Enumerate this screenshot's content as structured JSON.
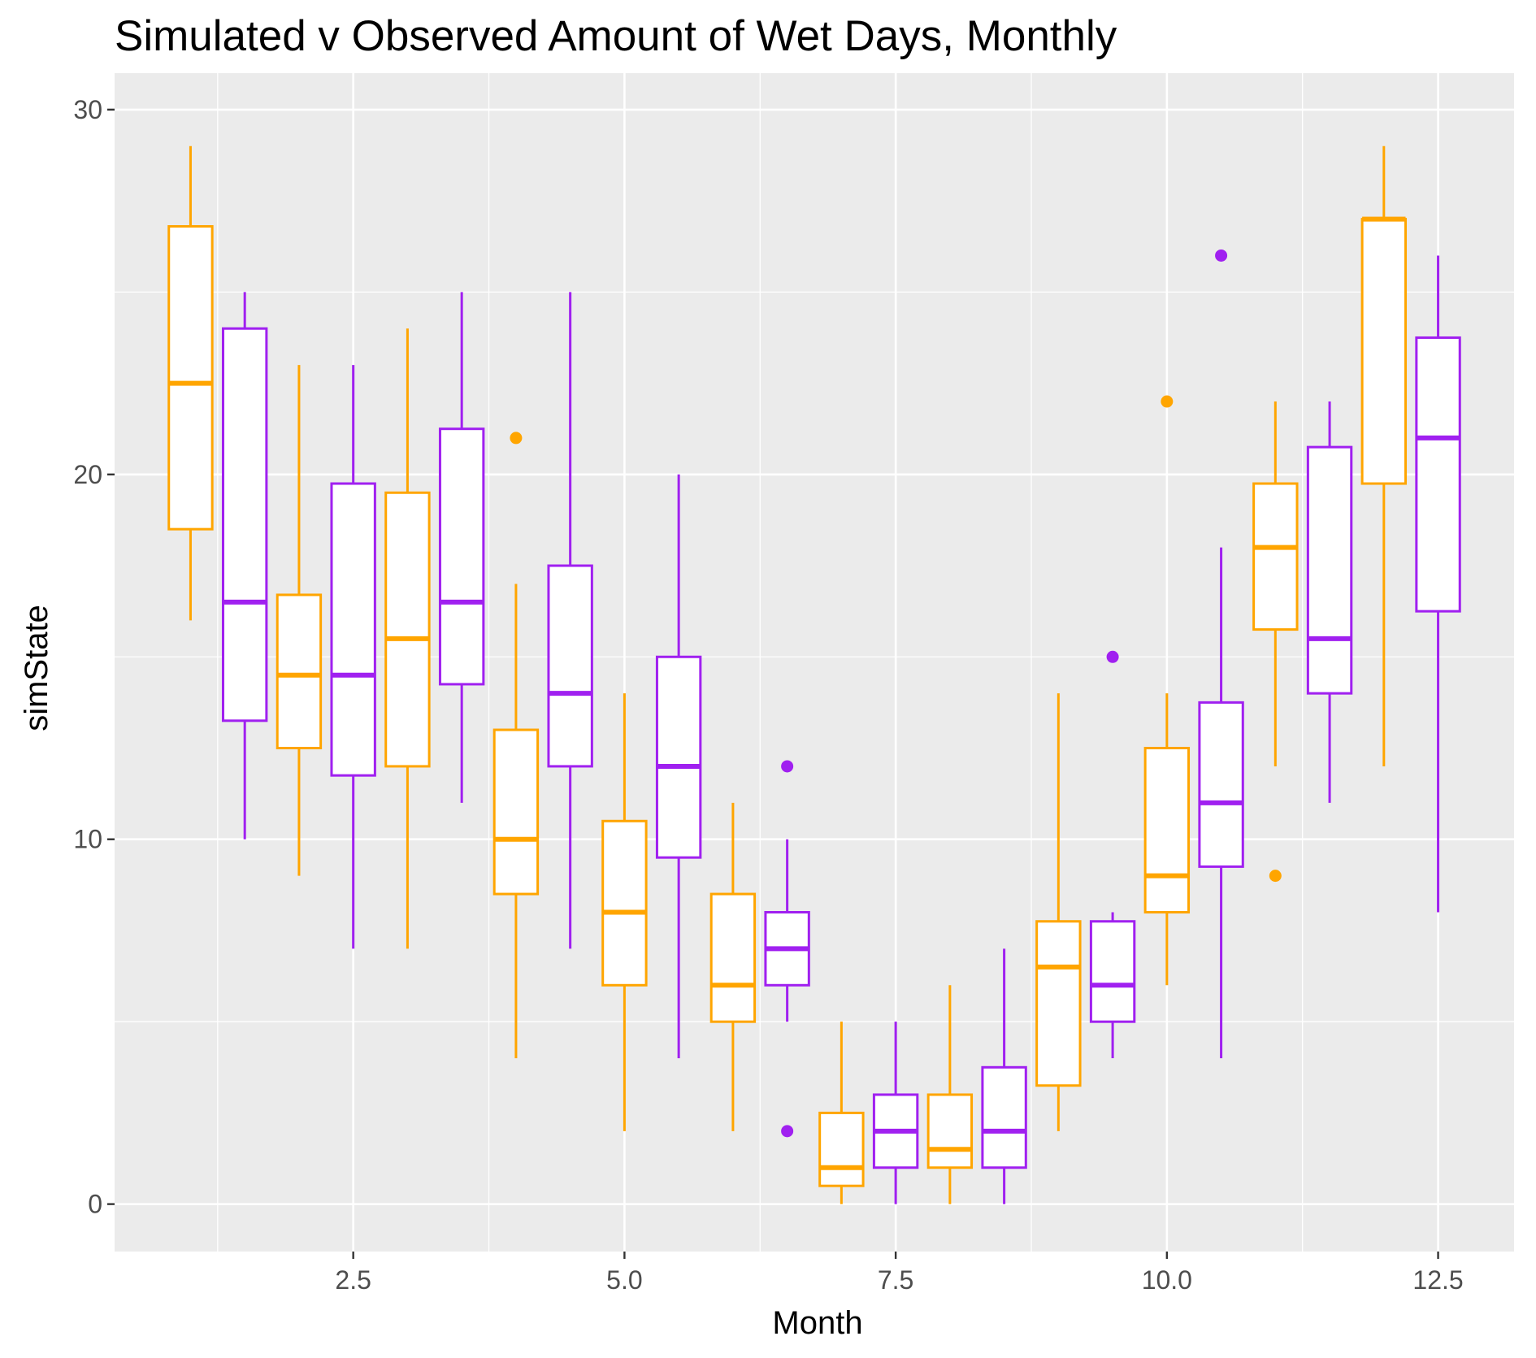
{
  "chart_data": {
    "type": "box",
    "title": "Simulated v Observed Amount of Wet Days, Monthly",
    "xlabel": "Month",
    "ylabel": "simState",
    "xlim": [
      0.3,
      13.2
    ],
    "ylim": [
      -1.3,
      31.0
    ],
    "x_ticks": [
      2.5,
      5.0,
      7.5,
      10.0,
      12.5
    ],
    "x_tick_labels": [
      "2.5",
      "5.0",
      "7.5",
      "10.0",
      "12.5"
    ],
    "y_ticks": [
      0,
      10,
      20,
      30
    ],
    "y_tick_labels": [
      "0",
      "10",
      "20",
      "30"
    ],
    "grid": true,
    "legend": "none",
    "box_width": 0.4,
    "series": [
      {
        "color": "#FFA500",
        "boxes": [
          {
            "x": 1,
            "min": 16,
            "q1": 18.5,
            "median": 22.5,
            "q3": 26.8,
            "max": 29,
            "outliers": []
          },
          {
            "x": 2,
            "min": 9,
            "q1": 12.5,
            "median": 14.5,
            "q3": 16.7,
            "max": 23,
            "outliers": []
          },
          {
            "x": 3,
            "min": 7,
            "q1": 12,
            "median": 15.5,
            "q3": 19.5,
            "max": 24,
            "outliers": []
          },
          {
            "x": 4,
            "min": 4,
            "q1": 8.5,
            "median": 10,
            "q3": 13,
            "max": 17,
            "outliers": [
              21
            ]
          },
          {
            "x": 5,
            "min": 2,
            "q1": 6,
            "median": 8,
            "q3": 10.5,
            "max": 14,
            "outliers": []
          },
          {
            "x": 6,
            "min": 2,
            "q1": 5,
            "median": 6,
            "q3": 8.5,
            "max": 11,
            "outliers": []
          },
          {
            "x": 7,
            "min": 0,
            "q1": 0.5,
            "median": 1,
            "q3": 2.5,
            "max": 5,
            "outliers": []
          },
          {
            "x": 8,
            "min": 0,
            "q1": 1,
            "median": 1.5,
            "q3": 3,
            "max": 6,
            "outliers": []
          },
          {
            "x": 9,
            "min": 2,
            "q1": 3.25,
            "median": 6.5,
            "q3": 7.75,
            "max": 14,
            "outliers": []
          },
          {
            "x": 10,
            "min": 6,
            "q1": 8,
            "median": 9,
            "q3": 12.5,
            "max": 14,
            "outliers": [
              22
            ]
          },
          {
            "x": 11,
            "min": 12,
            "q1": 15.75,
            "median": 18,
            "q3": 19.75,
            "max": 22,
            "outliers": [
              9
            ]
          },
          {
            "x": 12,
            "min": 12,
            "q1": 19.75,
            "median": 27,
            "q3": 27,
            "max": 29,
            "outliers": []
          }
        ]
      },
      {
        "color": "#A020F0",
        "boxes": [
          {
            "x": 1.5,
            "min": 10,
            "q1": 13.25,
            "median": 16.5,
            "q3": 24,
            "max": 25,
            "outliers": []
          },
          {
            "x": 2.5,
            "min": 7,
            "q1": 11.75,
            "median": 14.5,
            "q3": 19.75,
            "max": 23,
            "outliers": []
          },
          {
            "x": 3.5,
            "min": 11,
            "q1": 14.25,
            "median": 16.5,
            "q3": 21.25,
            "max": 25,
            "outliers": []
          },
          {
            "x": 4.5,
            "min": 7,
            "q1": 12,
            "median": 14,
            "q3": 17.5,
            "max": 25,
            "outliers": []
          },
          {
            "x": 5.5,
            "min": 4,
            "q1": 9.5,
            "median": 12,
            "q3": 15,
            "max": 20,
            "outliers": []
          },
          {
            "x": 6.5,
            "min": 5,
            "q1": 6,
            "median": 7,
            "q3": 8,
            "max": 10,
            "outliers": [
              12,
              2
            ]
          },
          {
            "x": 7.5,
            "min": 0,
            "q1": 1,
            "median": 2,
            "q3": 3,
            "max": 5,
            "outliers": []
          },
          {
            "x": 8.5,
            "min": 0,
            "q1": 1,
            "median": 2,
            "q3": 3.75,
            "max": 7,
            "outliers": []
          },
          {
            "x": 9.5,
            "min": 4,
            "q1": 5,
            "median": 6,
            "q3": 7.75,
            "max": 8,
            "outliers": [
              15
            ]
          },
          {
            "x": 10.5,
            "min": 4,
            "q1": 9.25,
            "median": 11,
            "q3": 13.75,
            "max": 18,
            "outliers": [
              26
            ]
          },
          {
            "x": 11.5,
            "min": 11,
            "q1": 14,
            "median": 15.5,
            "q3": 20.75,
            "max": 22,
            "outliers": []
          },
          {
            "x": 12.5,
            "min": 8,
            "q1": 16.25,
            "median": 21,
            "q3": 23.75,
            "max": 26,
            "outliers": []
          }
        ]
      }
    ],
    "panel_background": "#EBEBEB",
    "grid_color": "#FFFFFF"
  }
}
